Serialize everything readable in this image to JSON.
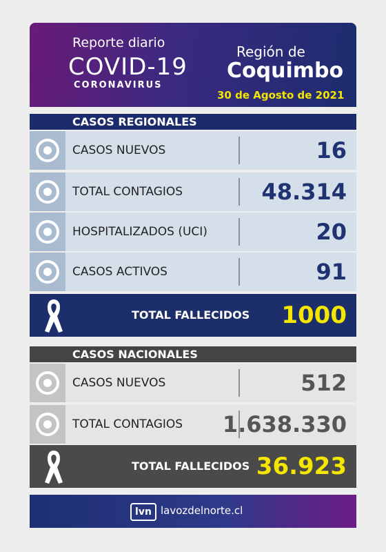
{
  "header": {
    "kicker": "Reporte diario",
    "title": "COVID-19",
    "subtitle": "CORONAVIRUS",
    "region_prefix": "Región de",
    "region": "Coquimbo",
    "date": "30 de Agosto de 2021"
  },
  "regional": {
    "heading": "CASOS REGIONALES",
    "rows": [
      {
        "label": "CASOS NUEVOS",
        "value": "16"
      },
      {
        "label": "TOTAL CONTAGIOS",
        "value": "48.314"
      },
      {
        "label": "HOSPITALIZADOS (UCI)",
        "value": "20"
      },
      {
        "label": "CASOS ACTIVOS",
        "value": "91"
      }
    ],
    "deaths": {
      "label": "TOTAL FALLECIDOS",
      "value": "1000"
    }
  },
  "national": {
    "heading": "CASOS NACIONALES",
    "rows": [
      {
        "label": "CASOS NUEVOS",
        "value": "512"
      },
      {
        "label": "TOTAL CONTAGIOS",
        "value": "1.638.330"
      }
    ],
    "deaths": {
      "label": "TOTAL FALLECIDOS",
      "value": "36.923"
    }
  },
  "footer": {
    "logo": "lvn",
    "site": "lavozdelnorte.cl"
  }
}
